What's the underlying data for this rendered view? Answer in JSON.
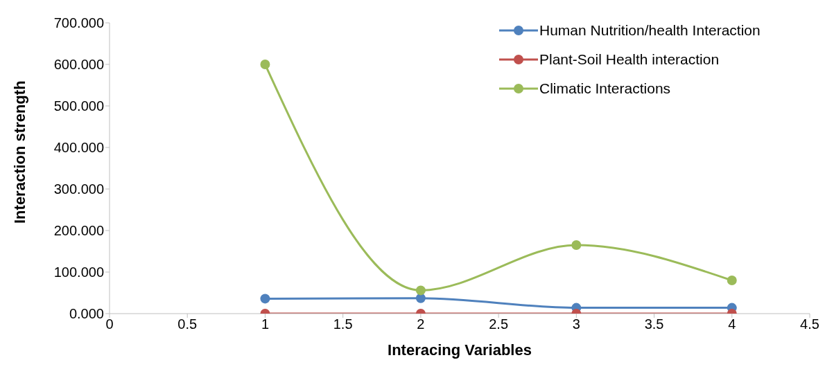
{
  "chart_data": {
    "type": "line",
    "xlabel": "Interacing Variables",
    "ylabel": "Interaction  strength",
    "x": [
      1,
      2,
      3,
      4
    ],
    "series": [
      {
        "name": "Human Nutrition/health Interaction",
        "color": "#4f81bd",
        "values": [
          36,
          37,
          14,
          14
        ]
      },
      {
        "name": "Plant-Soil Health interaction",
        "color": "#c0504d",
        "values": [
          0,
          0,
          0,
          0
        ]
      },
      {
        "name": "Climatic Interactions",
        "color": "#9bbb59",
        "values": [
          600,
          56,
          165,
          80
        ]
      }
    ],
    "xlim": [
      0,
      4.5
    ],
    "xticks": [
      0,
      0.5,
      1,
      1.5,
      2,
      2.5,
      3,
      3.5,
      4,
      4.5
    ],
    "ylim": [
      0,
      700
    ],
    "yticks": [
      {
        "value": 0,
        "label": "0.000"
      },
      {
        "value": 100,
        "label": "100.000"
      },
      {
        "value": 200,
        "label": "200.000"
      },
      {
        "value": 300,
        "label": "300.000"
      },
      {
        "value": 400,
        "label": "400.000"
      },
      {
        "value": 500,
        "label": "500.000"
      },
      {
        "value": 600,
        "label": "600.000"
      },
      {
        "value": 700,
        "label": "700.000"
      }
    ],
    "grid": false,
    "legend": "top right",
    "marker": "circle",
    "line_style": "solid"
  }
}
